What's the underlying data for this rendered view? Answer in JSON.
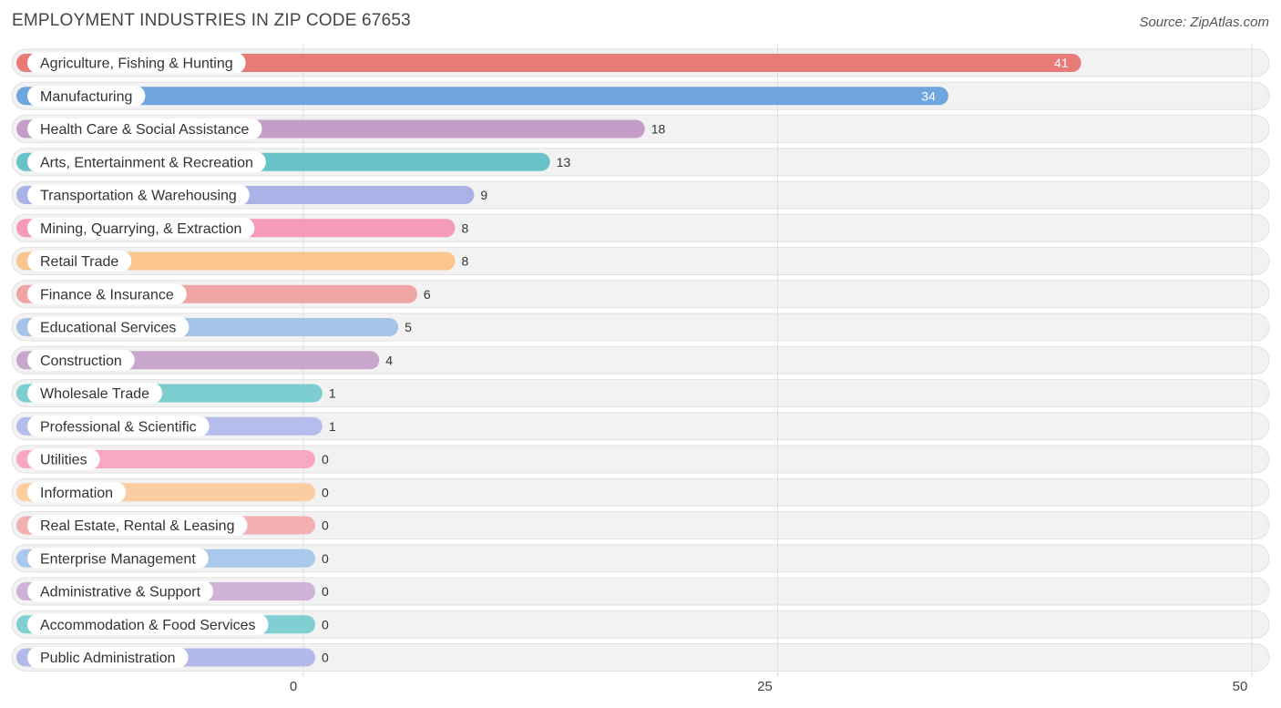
{
  "header": {
    "title": "EMPLOYMENT INDUSTRIES IN ZIP CODE 67653",
    "source": "Source: ZipAtlas.com"
  },
  "chart_data": {
    "type": "bar",
    "orientation": "horizontal",
    "title": "EMPLOYMENT INDUSTRIES IN ZIP CODE 67653",
    "xlim": [
      0,
      50
    ],
    "xticks": [
      0,
      25,
      50
    ],
    "grid": true,
    "categories": [
      "Agriculture, Fishing & Hunting",
      "Manufacturing",
      "Health Care & Social Assistance",
      "Arts, Entertainment & Recreation",
      "Transportation & Warehousing",
      "Mining, Quarrying, & Extraction",
      "Retail Trade",
      "Finance & Insurance",
      "Educational Services",
      "Construction",
      "Wholesale Trade",
      "Professional & Scientific",
      "Utilities",
      "Information",
      "Real Estate, Rental & Leasing",
      "Enterprise Management",
      "Administrative & Support",
      "Accommodation & Food Services",
      "Public Administration"
    ],
    "values": [
      41,
      34,
      18,
      13,
      9,
      8,
      8,
      6,
      5,
      4,
      1,
      1,
      0,
      0,
      0,
      0,
      0,
      0,
      0
    ],
    "colors": [
      "#e87b78",
      "#6fa6df",
      "#c49dc8",
      "#68c2c8",
      "#aab3e8",
      "#f59ab8",
      "#fbc58e",
      "#f0a5a5",
      "#a6c4e8",
      "#c9a6cc",
      "#7ccdd0",
      "#b4bdec",
      "#f8a8c4",
      "#fccda0",
      "#f3b0b0",
      "#a9c8ec",
      "#cfb3d6",
      "#7fcfd3",
      "#b2bae9"
    ]
  }
}
